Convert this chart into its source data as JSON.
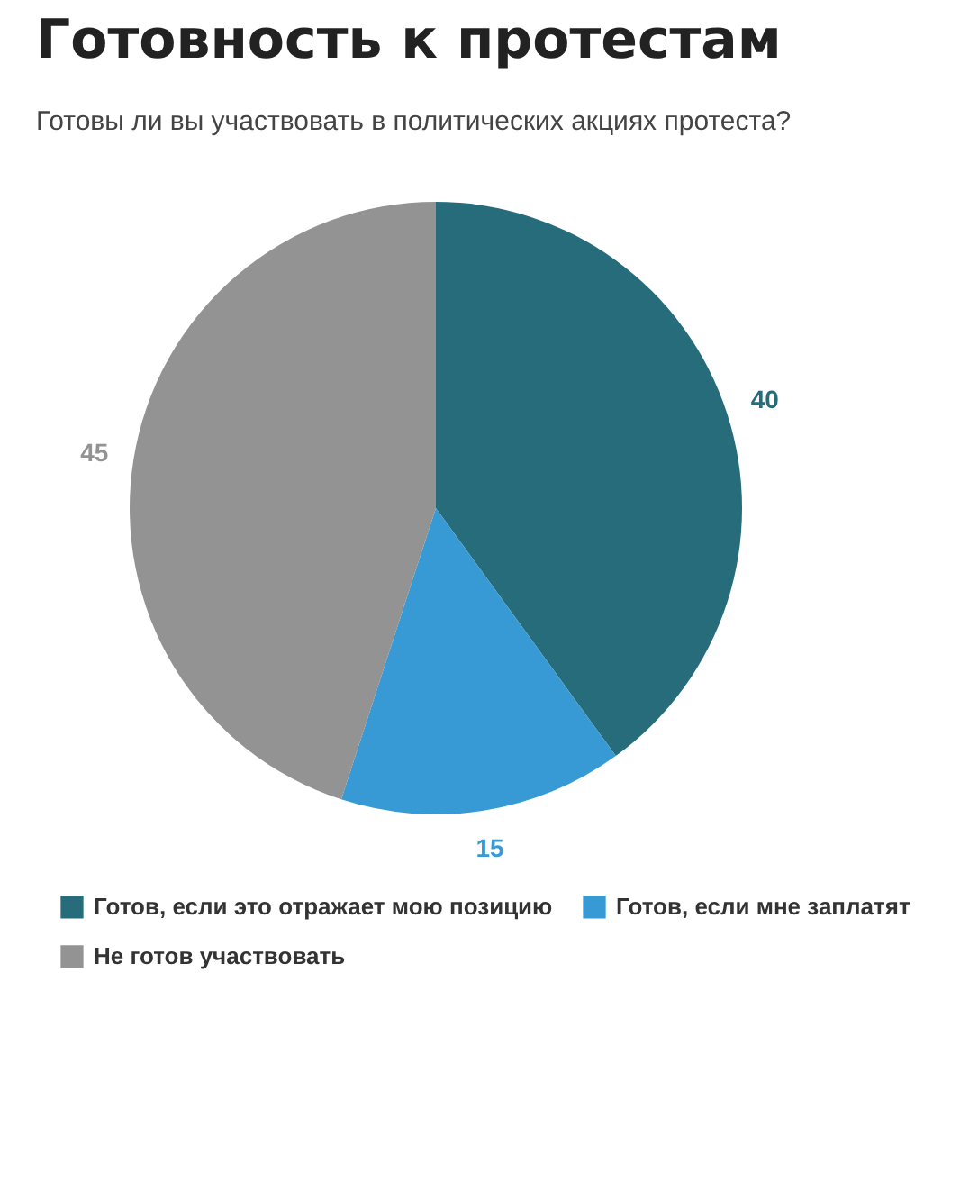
{
  "chart_data": {
    "type": "pie",
    "title": "Готовность к протестам",
    "subtitle": "Готовы ли вы участвовать в политических акциях протеста?",
    "categories": [
      "Готов, если это отражает мою позицию",
      "Готов, если мне заплатят",
      "Не готов участвовать"
    ],
    "values": [
      40,
      15,
      45
    ],
    "colors": [
      "#276c7b",
      "#379ad5",
      "#939393"
    ],
    "data_labels": true,
    "legend": "bottom"
  }
}
